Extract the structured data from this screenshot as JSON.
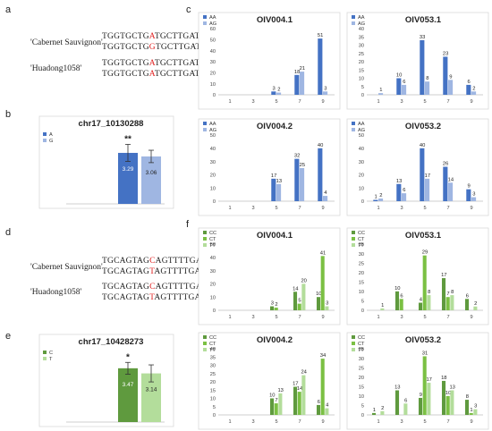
{
  "panels": {
    "a": "a",
    "b": "b",
    "c": "c",
    "d": "d",
    "e": "e",
    "f": "f"
  },
  "seq_a": {
    "variety1": "'Cabernet Sauvignon'",
    "variety2": "'Huadong1058'",
    "rows": [
      {
        "pre": "TGGTGCTG",
        "snp": "A",
        "post": "TGCTTGAT"
      },
      {
        "pre": "TGGTGCTG",
        "snp": "G",
        "post": "TGCTTGAT"
      },
      {
        "pre": "TGGTGCTG",
        "snp": "A",
        "post": "TGCTTGAT"
      },
      {
        "pre": "TGGTGCTG",
        "snp": "A",
        "post": "TGCTTGAT"
      }
    ]
  },
  "seq_d": {
    "variety1": "'Cabernet Sauvignon'",
    "variety2": "'Huadong1058'",
    "rows": [
      {
        "pre": "TGCAGTAG",
        "snp": "C",
        "post": "AGTTTTGA"
      },
      {
        "pre": "TGCAGTAG",
        "snp": "T",
        "post": "AGTTTTGA"
      },
      {
        "pre": "TGCAGTAG",
        "snp": "C",
        "post": "AGTTTTGA"
      },
      {
        "pre": "TGCAGTAG",
        "snp": "T",
        "post": "AGTTTTGA"
      }
    ]
  },
  "colors": {
    "blue_dark": "#4472c4",
    "blue_light": "#9fb6e2",
    "green_dark": "#5f9a3e",
    "green_mid": "#7bc043",
    "green_light": "#b3dd9b",
    "snp_red": "#e02020"
  },
  "chart_data": [
    {
      "id": "b",
      "type": "bar",
      "title": "chr17_10130288",
      "categories": [
        "A",
        "G"
      ],
      "values": [
        3.29,
        3.06
      ],
      "errors": [
        0.55,
        0.4
      ],
      "ylim": [
        0,
        4.5
      ],
      "significance": "**",
      "legend": [
        "A",
        "G"
      ],
      "colors": [
        "#4472c4",
        "#9fb6e2"
      ]
    },
    {
      "id": "e",
      "type": "bar",
      "title": "chr17_10428273",
      "categories": [
        "C",
        "T"
      ],
      "values": [
        3.47,
        3.14
      ],
      "errors": [
        0.38,
        0.55
      ],
      "ylim": [
        0,
        4.5
      ],
      "significance": "*",
      "legend": [
        "C",
        "T"
      ],
      "colors": [
        "#5f9a3e",
        "#b3dd9b"
      ]
    },
    {
      "id": "c1",
      "type": "bar",
      "title": "OIV004.1",
      "ylim": [
        0,
        60
      ],
      "yticks": [
        0,
        10,
        20,
        30,
        40,
        50,
        60
      ],
      "x": [
        1,
        3,
        5,
        7,
        9
      ],
      "series": [
        {
          "name": "AA",
          "values": [
            0,
            0,
            3,
            18,
            51
          ],
          "color": "#4472c4"
        },
        {
          "name": "AG",
          "values": [
            0,
            0,
            2,
            21,
            3
          ],
          "color": "#9fb6e2"
        }
      ]
    },
    {
      "id": "c2",
      "type": "bar",
      "title": "OIV053.1",
      "ylim": [
        0,
        40
      ],
      "yticks": [
        0,
        5,
        10,
        15,
        20,
        25,
        30,
        35,
        40
      ],
      "x": [
        1,
        3,
        5,
        7,
        9
      ],
      "series": [
        {
          "name": "AA",
          "values": [
            0,
            10,
            33,
            23,
            6
          ],
          "color": "#4472c4"
        },
        {
          "name": "AG",
          "values": [
            1,
            6,
            8,
            9,
            2
          ],
          "color": "#9fb6e2"
        }
      ]
    },
    {
      "id": "c3",
      "type": "bar",
      "title": "OIV004.2",
      "ylim": [
        0,
        50
      ],
      "yticks": [
        0,
        10,
        20,
        30,
        40,
        50
      ],
      "x": [
        1,
        3,
        5,
        7,
        9
      ],
      "series": [
        {
          "name": "AA",
          "values": [
            0,
            0,
            17,
            32,
            40
          ],
          "color": "#4472c4"
        },
        {
          "name": "AG",
          "values": [
            0,
            0,
            13,
            25,
            4
          ],
          "color": "#9fb6e2"
        }
      ]
    },
    {
      "id": "c4",
      "type": "bar",
      "title": "OIV053.2",
      "ylim": [
        0,
        50
      ],
      "yticks": [
        0,
        10,
        20,
        30,
        40,
        50
      ],
      "x": [
        1,
        3,
        5,
        7,
        9
      ],
      "series": [
        {
          "name": "AA",
          "values": [
            1,
            13,
            40,
            26,
            9
          ],
          "color": "#4472c4"
        },
        {
          "name": "AG",
          "values": [
            2,
            6,
            17,
            14,
            3
          ],
          "color": "#9fb6e2"
        }
      ]
    },
    {
      "id": "f1",
      "type": "bar",
      "title": "OIV004.1",
      "ylim": [
        0,
        50
      ],
      "yticks": [
        0,
        10,
        20,
        30,
        40,
        50
      ],
      "x": [
        1,
        3,
        5,
        7,
        9
      ],
      "series": [
        {
          "name": "CC",
          "values": [
            0,
            0,
            3,
            14,
            10
          ],
          "color": "#5f9a3e"
        },
        {
          "name": "CT",
          "values": [
            0,
            0,
            2,
            5,
            41
          ],
          "color": "#7bc043"
        },
        {
          "name": "TT",
          "values": [
            0,
            0,
            0,
            20,
            3
          ],
          "color": "#b3dd9b"
        }
      ]
    },
    {
      "id": "f2",
      "type": "bar",
      "title": "OIV053.1",
      "ylim": [
        0,
        35
      ],
      "yticks": [
        0,
        5,
        10,
        15,
        20,
        25,
        30,
        35
      ],
      "x": [
        1,
        3,
        5,
        7,
        9
      ],
      "series": [
        {
          "name": "CC",
          "values": [
            0,
            10,
            4,
            17,
            6
          ],
          "color": "#5f9a3e"
        },
        {
          "name": "CT",
          "values": [
            0,
            6,
            29,
            7,
            0
          ],
          "color": "#7bc043"
        },
        {
          "name": "TT",
          "values": [
            1,
            0,
            8,
            8,
            2
          ],
          "color": "#b3dd9b"
        }
      ]
    },
    {
      "id": "f3",
      "type": "bar",
      "title": "OIV004.2",
      "ylim": [
        0,
        40
      ],
      "yticks": [
        0,
        5,
        10,
        15,
        20,
        25,
        30,
        35,
        40
      ],
      "x": [
        1,
        3,
        5,
        7,
        9
      ],
      "series": [
        {
          "name": "CC",
          "values": [
            0,
            0,
            10,
            17,
            6
          ],
          "color": "#5f9a3e"
        },
        {
          "name": "CT",
          "values": [
            0,
            0,
            7,
            14,
            34
          ],
          "color": "#7bc043"
        },
        {
          "name": "TT",
          "values": [
            0,
            0,
            13,
            24,
            4
          ],
          "color": "#b3dd9b"
        }
      ]
    },
    {
      "id": "f4",
      "type": "bar",
      "title": "OIV053.2",
      "ylim": [
        0,
        35
      ],
      "yticks": [
        0,
        5,
        10,
        15,
        20,
        25,
        30,
        35
      ],
      "x": [
        1,
        3,
        5,
        7,
        9
      ],
      "series": [
        {
          "name": "CC",
          "values": [
            1,
            13,
            9,
            18,
            8
          ],
          "color": "#5f9a3e"
        },
        {
          "name": "CT",
          "values": [
            0,
            0,
            31,
            10,
            1
          ],
          "color": "#7bc043"
        },
        {
          "name": "TT",
          "values": [
            2,
            6,
            17,
            13,
            3
          ],
          "color": "#b3dd9b"
        }
      ]
    }
  ]
}
